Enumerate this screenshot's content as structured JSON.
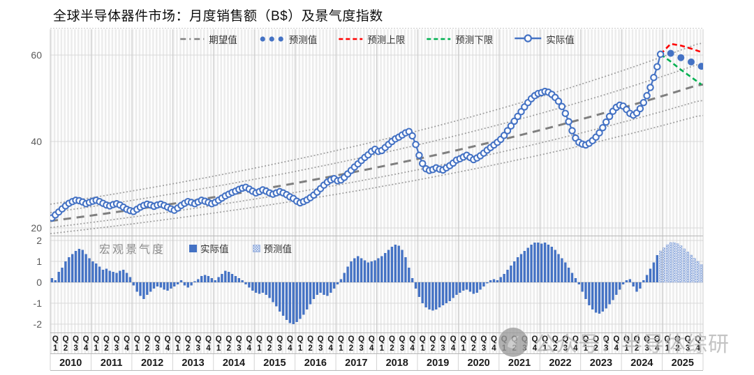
{
  "title": "全球半导体器件市场：月度销售额（B$）及景气度指数",
  "watermark": {
    "text": "公众号：半导体综研"
  },
  "colors": {
    "actual": "#4472C4",
    "forecast_dot": "#4472C4",
    "upper": "#FF0000",
    "lower": "#00B050",
    "expected": "#7F7F7F",
    "band": "#9E9E9E",
    "bar": "#4472C4",
    "bar_forecast_hatch": "#85A3DA",
    "axis_text": "#595959",
    "tick_text": "#1a1a1a"
  },
  "x_axis": {
    "quarter_letter": "Q",
    "quarter_numbers": [
      "1",
      "2",
      "3",
      "4"
    ],
    "years": [
      "2010",
      "2011",
      "2012",
      "2013",
      "2014",
      "2015",
      "2016",
      "2017",
      "2018",
      "2019",
      "2020",
      "2021",
      "2022",
      "2023",
      "2024",
      "2025"
    ]
  },
  "chart_data": [
    {
      "type": "line",
      "panel": "top",
      "title": "全球半导体器件市场：月度销售额（B$）及景气度指数",
      "ylabel": "",
      "y_ticks": [
        60,
        40,
        20
      ],
      "ylim": [
        18,
        66
      ],
      "x_unit": "month",
      "x_start": "2010-01",
      "x_end": "2025-12",
      "legend": [
        "期望值",
        "预测值",
        "预测上限",
        "预测下限",
        "实际值"
      ],
      "actual_monthly": [
        22.3,
        23.0,
        23.7,
        24.4,
        25.1,
        25.7,
        26.1,
        26.4,
        26.3,
        26.0,
        25.6,
        25.9,
        26.2,
        26.4,
        26.1,
        25.7,
        25.3,
        25.1,
        25.4,
        25.6,
        25.3,
        24.8,
        24.3,
        24.0,
        23.8,
        24.3,
        24.8,
        25.2,
        25.5,
        25.3,
        25.0,
        25.3,
        25.5,
        25.2,
        24.8,
        24.4,
        24.1,
        24.6,
        25.2,
        25.7,
        26.1,
        25.9,
        25.6,
        26.0,
        26.4,
        26.2,
        25.9,
        25.6,
        25.9,
        26.4,
        26.9,
        27.4,
        27.8,
        28.2,
        28.5,
        28.9,
        29.2,
        29.4,
        29.0,
        28.5,
        28.1,
        28.4,
        28.8,
        28.5,
        28.1,
        27.8,
        28.1,
        28.4,
        28.1,
        27.7,
        27.2,
        26.8,
        26.2,
        25.8,
        26.1,
        26.5,
        27.0,
        27.6,
        28.3,
        29.1,
        29.9,
        30.6,
        31.1,
        31.4,
        30.9,
        31.1,
        31.7,
        32.5,
        33.3,
        34.1,
        34.8,
        35.6,
        36.3,
        36.9,
        37.7,
        38.2,
        37.7,
        37.9,
        38.6,
        39.3,
        40.0,
        40.6,
        41.0,
        41.5,
        42.0,
        42.3,
        41.3,
        39.3,
        36.8,
        34.9,
        33.7,
        33.3,
        33.5,
        33.9,
        33.6,
        33.4,
        33.9,
        34.4,
        35.0,
        35.7,
        36.0,
        36.4,
        36.8,
        36.3,
        35.8,
        36.2,
        36.7,
        37.3,
        38.0,
        38.6,
        39.2,
        39.8,
        40.5,
        41.4,
        42.5,
        43.6,
        44.7,
        45.8,
        46.9,
        48.0,
        49.0,
        49.9,
        50.6,
        51.1,
        51.3,
        51.6,
        51.4,
        50.9,
        50.2,
        49.3,
        48.1,
        46.5,
        44.6,
        42.5,
        40.8,
        39.8,
        39.4,
        39.2,
        39.6,
        40.2,
        41.0,
        42.0,
        43.2,
        44.5,
        45.8,
        47.0,
        47.9,
        48.4,
        48.2,
        47.4,
        46.5,
        46.1,
        46.6,
        47.6,
        49.0,
        50.6,
        52.5,
        54.8,
        57.3,
        60.2
      ],
      "forecast_dots": {
        "months_from_start": [
          182,
          185,
          188,
          191
        ],
        "values": [
          60.4,
          59.4,
          58.4,
          57.4
        ]
      },
      "upper_bound": {
        "months_from_start": [
          179,
          182,
          185,
          188,
          191
        ],
        "values": [
          60.2,
          62.6,
          62.2,
          61.5,
          60.7
        ]
      },
      "lower_bound": {
        "months_from_start": [
          179,
          182,
          185,
          188,
          191
        ],
        "values": [
          60.2,
          58.5,
          56.6,
          54.9,
          53.2
        ]
      },
      "expected_line": {
        "start_value": 21.6,
        "end_value": 53.2
      },
      "band_factors": [
        1.18,
        1.09,
        0.93,
        0.865
      ]
    },
    {
      "type": "bar",
      "panel": "bottom",
      "label": "宏观景气度",
      "legend": [
        "实际值",
        "预测值"
      ],
      "y_ticks": [
        2,
        1,
        0,
        -1,
        -2
      ],
      "ylim": [
        -2.2,
        2.2
      ],
      "x_start": "2010-01",
      "actual_monthly": [
        0.2,
        0.1,
        0.5,
        0.7,
        1.0,
        1.2,
        1.35,
        1.5,
        1.6,
        1.55,
        1.35,
        1.15,
        1.0,
        0.9,
        0.75,
        0.6,
        0.65,
        0.55,
        0.5,
        0.45,
        0.55,
        0.6,
        0.45,
        0.25,
        -0.15,
        -0.45,
        -0.65,
        -0.8,
        -0.6,
        -0.45,
        -0.3,
        -0.2,
        -0.25,
        -0.35,
        -0.4,
        -0.3,
        -0.2,
        -0.1,
        0.1,
        -0.15,
        -0.25,
        -0.15,
        0.05,
        0.15,
        0.3,
        0.35,
        0.3,
        0.2,
        0.1,
        0.25,
        0.4,
        0.55,
        0.5,
        0.4,
        0.3,
        0.2,
        0.1,
        -0.1,
        -0.25,
        -0.4,
        -0.5,
        -0.55,
        -0.5,
        -0.6,
        -0.75,
        -0.95,
        -1.15,
        -1.4,
        -1.6,
        -1.8,
        -1.95,
        -2.0,
        -1.9,
        -1.75,
        -1.55,
        -1.3,
        -1.05,
        -0.8,
        -0.6,
        -0.5,
        -0.6,
        -0.65,
        -0.5,
        -0.3,
        -0.1,
        0.15,
        0.45,
        0.75,
        1.0,
        1.15,
        1.25,
        1.15,
        1.05,
        0.95,
        1.0,
        1.05,
        1.15,
        1.25,
        1.4,
        1.55,
        1.7,
        1.8,
        1.75,
        1.55,
        1.2,
        0.7,
        0.2,
        -0.3,
        -0.7,
        -1.0,
        -1.2,
        -1.3,
        -1.35,
        -1.3,
        -1.2,
        -1.1,
        -1.0,
        -0.9,
        -0.75,
        -0.6,
        -0.5,
        -0.4,
        -0.35,
        -0.45,
        -0.55,
        -0.5,
        -0.35,
        -0.2,
        -0.05,
        0.1,
        0.15,
        0.1,
        0.25,
        0.4,
        0.6,
        0.8,
        1.0,
        1.2,
        1.35,
        1.5,
        1.65,
        1.8,
        1.9,
        1.9,
        1.85,
        1.9,
        1.8,
        1.7,
        1.55,
        1.35,
        1.15,
        0.95,
        0.7,
        0.45,
        0.2,
        -0.1,
        -0.45,
        -0.8,
        -1.1,
        -1.3,
        -1.45,
        -1.5,
        -1.4,
        -1.25,
        -1.05,
        -0.85,
        -0.6,
        -0.35,
        -0.1,
        0.1,
        0.15,
        -0.2,
        -0.45,
        -0.3,
        0.1,
        0.35,
        0.65,
        0.95,
        1.3
      ],
      "forecast_monthly": [
        1.5,
        1.65,
        1.8,
        1.9,
        1.9,
        1.85,
        1.75,
        1.6,
        1.45,
        1.3,
        1.15,
        1.0,
        0.85
      ]
    }
  ]
}
